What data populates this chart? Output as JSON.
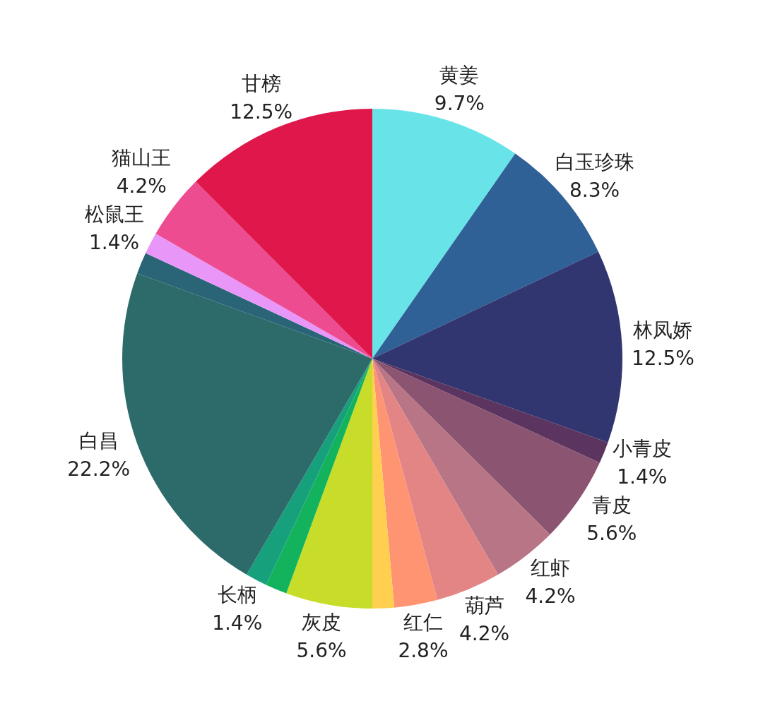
{
  "chart_data": {
    "type": "pie",
    "categories": [
      "黄姜",
      "白玉珍珠",
      "林凤娇",
      "小青皮",
      "青皮",
      "红虾",
      "葫芦",
      "红仁",
      null,
      "灰皮",
      null,
      "长柄",
      "白昌",
      null,
      "松鼠王",
      "猫山王",
      "甘榜"
    ],
    "values": [
      9.7,
      8.3,
      12.5,
      1.4,
      5.6,
      4.2,
      4.2,
      2.8,
      1.4,
      5.6,
      1.4,
      1.4,
      22.2,
      1.4,
      1.4,
      4.2,
      12.5
    ],
    "value_labels": [
      "9.7%",
      "8.3%",
      "12.5%",
      "1.4%",
      "5.6%",
      "4.2%",
      "4.2%",
      "2.8%",
      null,
      "5.6%",
      null,
      "1.4%",
      "22.2%",
      null,
      "1.4%",
      "4.2%",
      "12.5%"
    ],
    "colors": [
      "#68e4e8",
      "#2f6096",
      "#313570",
      "#5b3560",
      "#8b5572",
      "#b87585",
      "#e38585",
      "#ff9473",
      "#ffd04f",
      "#c7dd2a",
      "#13b35e",
      "#16a07c",
      "#2d6b6b",
      "#2a6577",
      "#e896f8",
      "#ee4c90",
      "#e0174b"
    ],
    "legend": false
  }
}
